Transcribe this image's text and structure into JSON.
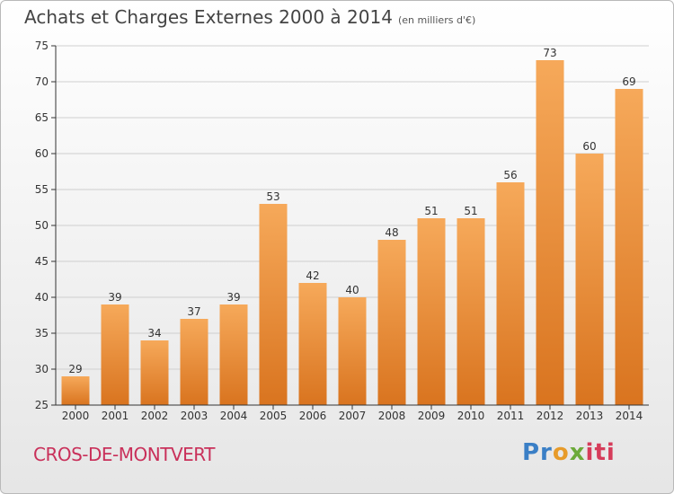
{
  "header": {
    "title": "Achats et Charges Externes 2000 à 2014",
    "subtitle": "(en milliers d'€)"
  },
  "footer": {
    "commune": "CROS-DE-MONTVERT",
    "logo_parts": [
      "Pr",
      "o",
      "x",
      "iti"
    ]
  },
  "colors": {
    "bar_top": "#f6a95a",
    "bar_bottom": "#d9741f",
    "grid": "#cfcfcf",
    "axis": "#333333",
    "commune": "#c9305a"
  },
  "chart_data": {
    "type": "bar",
    "title": "Achats et Charges Externes 2000 à 2014",
    "subtitle": "(en milliers d'€)",
    "xlabel": "",
    "ylabel": "",
    "ylim": [
      25,
      75
    ],
    "yticks": [
      25,
      30,
      35,
      40,
      45,
      50,
      55,
      60,
      65,
      70,
      75
    ],
    "grid": true,
    "categories": [
      "2000",
      "2001",
      "2002",
      "2003",
      "2004",
      "2005",
      "2006",
      "2007",
      "2008",
      "2009",
      "2010",
      "2011",
      "2012",
      "2013",
      "2014"
    ],
    "values": [
      29,
      39,
      34,
      37,
      39,
      53,
      42,
      40,
      48,
      51,
      51,
      56,
      73,
      60,
      69
    ]
  }
}
